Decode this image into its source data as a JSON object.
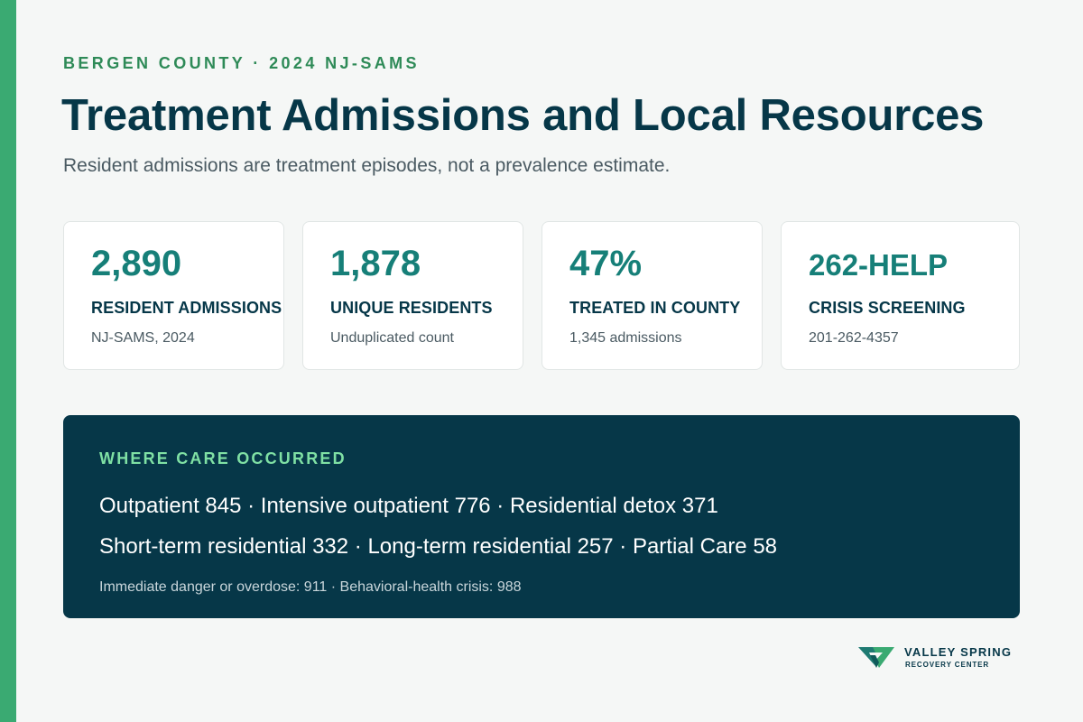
{
  "colors": {
    "accent_bar": "#3aaa72",
    "eyebrow": "#2e8a57",
    "value": "#167f78",
    "navy": "#063748",
    "panel_heading": "#7fe0a4"
  },
  "header": {
    "eyebrow": "BERGEN COUNTY · 2024 NJ-SAMS",
    "title": "Treatment Admissions and Local Resources",
    "subtitle": "Resident admissions are treatment episodes, not a prevalence estimate."
  },
  "cards": [
    {
      "value": "2,890",
      "label": "RESIDENT ADMISSIONS",
      "note": "NJ-SAMS, 2024"
    },
    {
      "value": "1,878",
      "label": "UNIQUE RESIDENTS",
      "note": "Unduplicated count"
    },
    {
      "value": "47%",
      "label": "TREATED IN COUNTY",
      "note": "1,345 admissions"
    },
    {
      "value": "262-HELP",
      "label": "CRISIS SCREENING",
      "note": "201-262-4357"
    }
  ],
  "care_panel": {
    "heading": "WHERE CARE OCCURRED",
    "line1": "Outpatient 845 · Intensive outpatient 776 · Residential detox 371",
    "line2": "Short-term residential 332 · Long-term residential 257 · Partial Care 58",
    "footnote": "Immediate danger or overdose: 911 · Behavioral-health crisis: 988"
  },
  "logo": {
    "icon": "valley-spring-logo-icon",
    "name": "VALLEY SPRING",
    "subtitle": "RECOVERY CENTER"
  }
}
